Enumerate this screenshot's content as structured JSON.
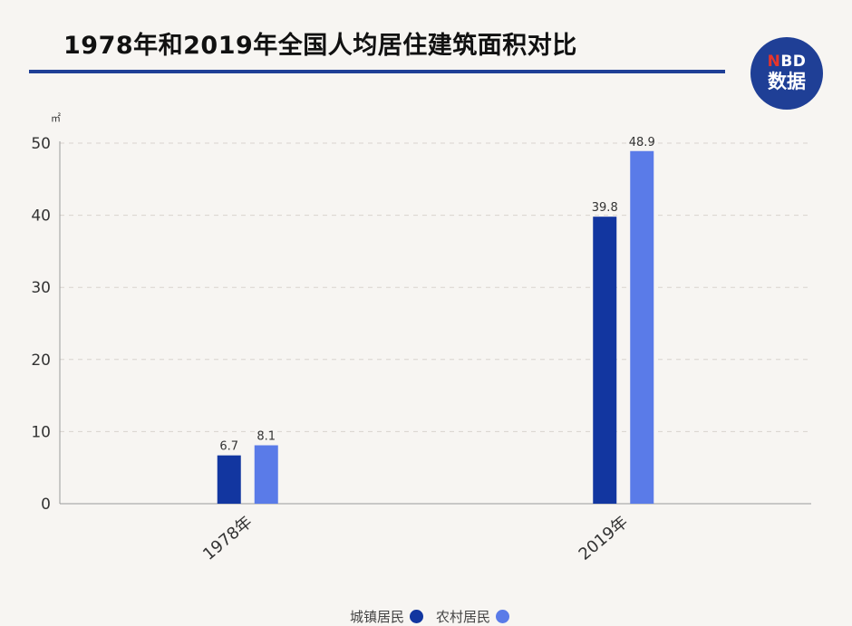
{
  "title": "1978年和2019年全国人均居住建筑面积对比",
  "logo": {
    "top": "NBD",
    "bottom": "数据"
  },
  "colors": {
    "urban": "#1236a0",
    "rural": "#5a7be8",
    "accent": "#1f3f96",
    "grid": "#d8d4ce",
    "axis": "#9a9a9a"
  },
  "chart_data": {
    "type": "bar",
    "title": "1978年和2019年全国人均居住建筑面积对比",
    "unit": "㎡",
    "categories": [
      "1978年",
      "2019年"
    ],
    "series": [
      {
        "name": "城镇居民",
        "values": [
          6.7,
          39.8
        ],
        "labels": [
          "6.7",
          "39.8"
        ]
      },
      {
        "name": "农村居民",
        "values": [
          8.1,
          48.9
        ],
        "labels": [
          "8.1",
          "48.9"
        ]
      }
    ],
    "ylim": [
      0,
      50
    ],
    "yticks": [
      0,
      10,
      20,
      30,
      40,
      50
    ],
    "grid": true,
    "legend_position": "bottom"
  }
}
